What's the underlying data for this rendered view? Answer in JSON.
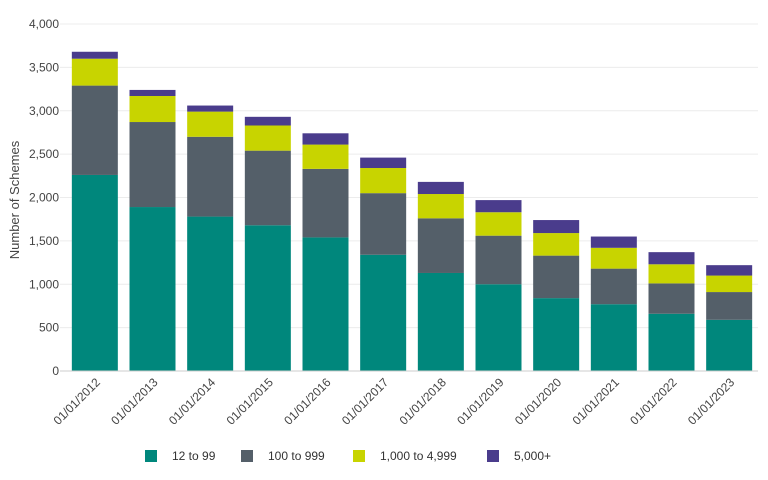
{
  "chart_data": {
    "type": "bar",
    "stacked": true,
    "title": "",
    "xlabel": "",
    "ylabel": "Number of Schemes",
    "ylim": [
      0,
      4000
    ],
    "yticks": [
      0,
      500,
      1000,
      1500,
      2000,
      2500,
      3000,
      3500,
      4000
    ],
    "ytick_labels": [
      "0",
      "500",
      "1,000",
      "1,500",
      "2,000",
      "2,500",
      "3,000",
      "3,500",
      "4,000"
    ],
    "grid": true,
    "legend_position": "bottom",
    "categories": [
      "01/01/2012",
      "01/01/2013",
      "01/01/2014",
      "01/01/2015",
      "01/01/2016",
      "01/01/2017",
      "01/01/2018",
      "01/01/2019",
      "01/01/2020",
      "01/01/2021",
      "01/01/2022",
      "01/01/2023"
    ],
    "series": [
      {
        "name": "12 to 99",
        "color": "#00877c",
        "values": [
          2260,
          1890,
          1780,
          1680,
          1540,
          1340,
          1130,
          1000,
          840,
          770,
          660,
          590
        ]
      },
      {
        "name": "100 to 999",
        "color": "#545f69",
        "values": [
          1030,
          980,
          920,
          860,
          790,
          710,
          630,
          560,
          490,
          410,
          350,
          320
        ]
      },
      {
        "name": "1,000 to 4,999",
        "color": "#c8d400",
        "values": [
          310,
          300,
          290,
          290,
          280,
          290,
          280,
          270,
          260,
          240,
          220,
          190
        ]
      },
      {
        "name": "5,000+",
        "color": "#4a3c8c",
        "values": [
          80,
          70,
          70,
          100,
          130,
          120,
          140,
          140,
          150,
          130,
          140,
          120
        ]
      }
    ]
  }
}
